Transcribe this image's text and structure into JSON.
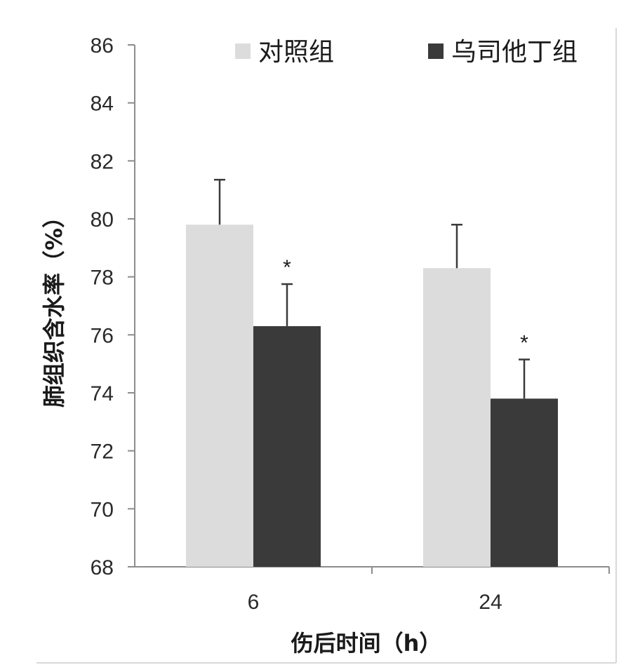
{
  "chart_data": {
    "type": "bar",
    "categories": [
      "6",
      "24"
    ],
    "series": [
      {
        "name": "对照组",
        "values": [
          79.8,
          78.3
        ],
        "errors": [
          1.55,
          1.5
        ],
        "significant": [
          false,
          false
        ],
        "color": "#dcdcdc"
      },
      {
        "name": "乌司他丁组",
        "values": [
          76.3,
          73.8
        ],
        "errors": [
          1.45,
          1.35
        ],
        "significant": [
          true,
          true
        ],
        "color": "#3a3a3a"
      }
    ],
    "significance_marker": "*",
    "title": "",
    "xlabel": "伤后时间（h）",
    "ylabel": "肺组织含水率（%）",
    "ylim": [
      68,
      86
    ],
    "yticks": [
      68,
      70,
      72,
      74,
      76,
      78,
      80,
      82,
      84,
      86
    ],
    "grid": false,
    "legend_position": "top"
  }
}
